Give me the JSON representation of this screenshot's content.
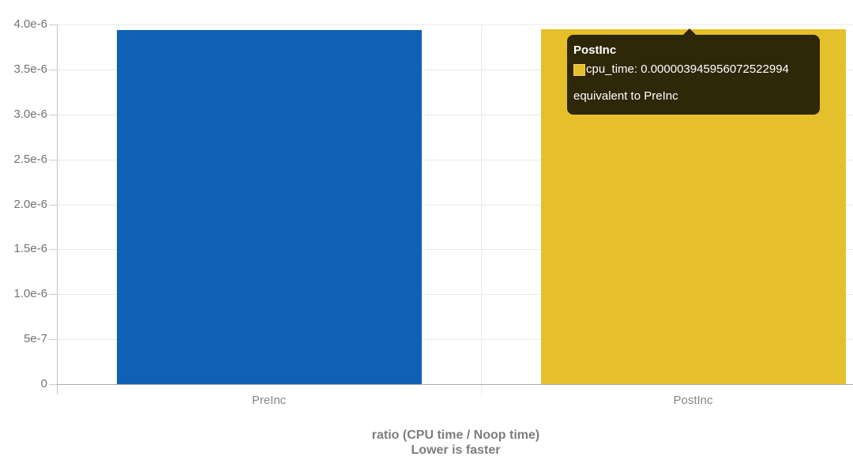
{
  "chart_data": {
    "type": "bar",
    "title": "",
    "categories": [
      "PreInc",
      "PostInc"
    ],
    "series": [
      {
        "name": "cpu_time",
        "values": [
          3.94e-06,
          3.945956072522994e-06
        ],
        "colors": [
          "#1061b5",
          "#e6c02b"
        ]
      }
    ],
    "ylim": [
      0,
      4e-06
    ],
    "yticks": {
      "labels": [
        "0",
        "5e-7",
        "1.0e-6",
        "1.5e-6",
        "2.0e-6",
        "2.5e-6",
        "3.0e-6",
        "3.5e-6",
        "4.0e-6"
      ],
      "values": [
        0,
        5e-07,
        1e-06,
        1.5e-06,
        2e-06,
        2.5e-06,
        3e-06,
        3.5e-06,
        4e-06
      ]
    },
    "xlabel": "ratio (CPU time / Noop time)",
    "xlabel2": "Lower is faster",
    "ylabel": "",
    "grid": true,
    "legend_position": "none"
  },
  "tooltip": {
    "title": "PostInc",
    "series_label": "cpu_time",
    "value": "0.000003945956072522994",
    "value_line": "cpu_time: 0.000003945956072522994",
    "note": "equivalent to PreInc",
    "swatch_color": "#e6c02b",
    "background_color": "rgba(0,0,0,0.8)"
  },
  "colors": {
    "bar_preinc": "#1061b5",
    "bar_postinc": "#e6c02b",
    "gridline": "#e9e9e9",
    "axis_baseline": "#ababab",
    "tick_label": "#737373",
    "axis_title": "#7d7d7d"
  }
}
